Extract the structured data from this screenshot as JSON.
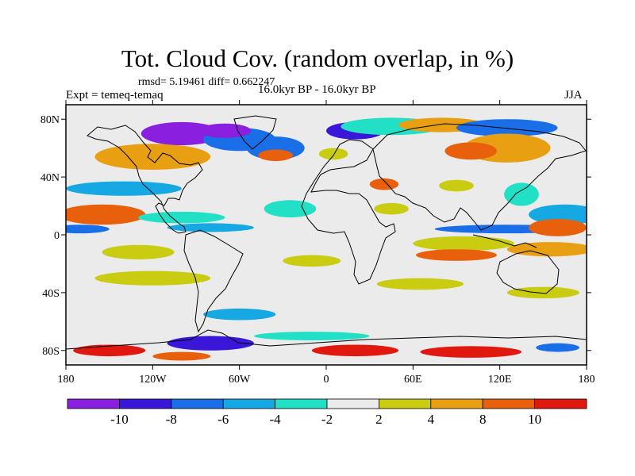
{
  "title": "Tot. Cloud Cov. (random overlap, in %)",
  "stats": "rmsd= 5.19461 diff= 0.662247",
  "experiment": "Expt = temeq-temaq",
  "period": "16.0kyr BP - 16.0kyr BP",
  "season": "JJA",
  "chart_data": {
    "type": "heatmap",
    "projection": "cylindrical-equidistant",
    "title": "Tot. Cloud Cov. (random overlap, in %)",
    "variable": "total cloud cover difference (%)",
    "xlim": [
      -180,
      180
    ],
    "ylim": [
      -90,
      90
    ],
    "x_ticks": [
      {
        "value": -180,
        "label": "180"
      },
      {
        "value": -120,
        "label": "120W"
      },
      {
        "value": -60,
        "label": "60W"
      },
      {
        "value": 0,
        "label": "0"
      },
      {
        "value": 60,
        "label": "60E"
      },
      {
        "value": 120,
        "label": "120E"
      },
      {
        "value": 180,
        "label": "180"
      }
    ],
    "y_ticks": [
      {
        "value": 80,
        "label": "80N"
      },
      {
        "value": 40,
        "label": "40N"
      },
      {
        "value": 0,
        "label": "0"
      },
      {
        "value": -40,
        "label": "40S"
      },
      {
        "value": -80,
        "label": "80S"
      }
    ],
    "colorbar": {
      "levels": [
        -12,
        -10,
        -8,
        -6,
        -4,
        -2,
        2,
        4,
        8,
        10
      ],
      "labels": [
        "-10",
        "-8",
        "-6",
        "-4",
        "-2",
        "2",
        "4",
        "8",
        "10"
      ],
      "colors": [
        "#8a1fe0",
        "#3a16d8",
        "#1a6ee8",
        "#15a8e3",
        "#22e0c6",
        "#ebebeb",
        "#c9cc10",
        "#e8a012",
        "#e8600c",
        "#e01810"
      ]
    },
    "fill_colors": {
      "neutral": "#ebebeb",
      "c-10": "#8a1fe0",
      "c-8": "#3a16d8",
      "c-6": "#1a6ee8",
      "c-4": "#15a8e3",
      "c-2": "#22e0c6",
      "c2": "#c9cc10",
      "c4": "#e8a012",
      "c8": "#e8600c",
      "c10": "#e01810"
    },
    "anomalies": [
      {
        "lon": -120,
        "lat": 54,
        "rlon": 40,
        "rlat": 9,
        "level": "c4"
      },
      {
        "lon": -100,
        "lat": 70,
        "rlon": 28,
        "rlat": 8,
        "level": "c-10"
      },
      {
        "lon": -60,
        "lat": 66,
        "rlon": 25,
        "rlat": 8,
        "level": "c-6"
      },
      {
        "lon": -70,
        "lat": 72,
        "rlon": 18,
        "rlat": 5,
        "level": "c-10"
      },
      {
        "lon": -140,
        "lat": 32,
        "rlon": 40,
        "rlat": 5,
        "level": "c-4"
      },
      {
        "lon": -155,
        "lat": 14,
        "rlon": 30,
        "rlat": 7,
        "level": "c8"
      },
      {
        "lon": -100,
        "lat": 12,
        "rlon": 30,
        "rlat": 4,
        "level": "c-2"
      },
      {
        "lon": -170,
        "lat": 4,
        "rlon": 20,
        "rlat": 3,
        "level": "c-6"
      },
      {
        "lon": -80,
        "lat": 5,
        "rlon": 30,
        "rlat": 3,
        "level": "c-4"
      },
      {
        "lon": -130,
        "lat": -12,
        "rlon": 25,
        "rlat": 5,
        "level": "c2"
      },
      {
        "lon": -120,
        "lat": -30,
        "rlon": 40,
        "rlat": 5,
        "level": "c2"
      },
      {
        "lon": -25,
        "lat": 18,
        "rlon": 18,
        "rlat": 6,
        "level": "c-2"
      },
      {
        "lon": -10,
        "lat": -18,
        "rlon": 20,
        "rlat": 4,
        "level": "c2"
      },
      {
        "lon": -35,
        "lat": 60,
        "rlon": 20,
        "rlat": 8,
        "level": "c-6"
      },
      {
        "lon": -35,
        "lat": 55,
        "rlon": 12,
        "rlat": 4,
        "level": "c8"
      },
      {
        "lon": 20,
        "lat": 72,
        "rlon": 20,
        "rlat": 6,
        "level": "c-8"
      },
      {
        "lon": 45,
        "lat": 75,
        "rlon": 35,
        "rlat": 6,
        "level": "c-2"
      },
      {
        "lon": 80,
        "lat": 76,
        "rlon": 30,
        "rlat": 5,
        "level": "c4"
      },
      {
        "lon": 125,
        "lat": 74,
        "rlon": 35,
        "rlat": 6,
        "level": "c-6"
      },
      {
        "lon": 125,
        "lat": 60,
        "rlon": 30,
        "rlat": 10,
        "level": "c4"
      },
      {
        "lon": 100,
        "lat": 58,
        "rlon": 18,
        "rlat": 6,
        "level": "c8"
      },
      {
        "lon": 5,
        "lat": 56,
        "rlon": 10,
        "rlat": 4,
        "level": "c2"
      },
      {
        "lon": 40,
        "lat": 35,
        "rlon": 10,
        "rlat": 4,
        "level": "c8"
      },
      {
        "lon": 45,
        "lat": 18,
        "rlon": 12,
        "rlat": 4,
        "level": "c2"
      },
      {
        "lon": 90,
        "lat": 34,
        "rlon": 12,
        "rlat": 4,
        "level": "c2"
      },
      {
        "lon": 135,
        "lat": 28,
        "rlon": 12,
        "rlat": 8,
        "level": "c-2"
      },
      {
        "lon": 165,
        "lat": 14,
        "rlon": 25,
        "rlat": 7,
        "level": "c-4"
      },
      {
        "lon": 125,
        "lat": 4,
        "rlon": 50,
        "rlat": 3,
        "level": "c-6"
      },
      {
        "lon": 95,
        "lat": -6,
        "rlon": 35,
        "rlat": 5,
        "level": "c2"
      },
      {
        "lon": 155,
        "lat": -10,
        "rlon": 30,
        "rlat": 5,
        "level": "c4"
      },
      {
        "lon": 90,
        "lat": -14,
        "rlon": 28,
        "rlat": 4,
        "level": "c8"
      },
      {
        "lon": 160,
        "lat": 5,
        "rlon": 20,
        "rlat": 6,
        "level": "c8"
      },
      {
        "lon": 65,
        "lat": -34,
        "rlon": 30,
        "rlat": 4,
        "level": "c2"
      },
      {
        "lon": 150,
        "lat": -40,
        "rlon": 25,
        "rlat": 4,
        "level": "c2"
      },
      {
        "lon": -60,
        "lat": -55,
        "rlon": 25,
        "rlat": 4,
        "level": "c-4"
      },
      {
        "lon": -80,
        "lat": -75,
        "rlon": 30,
        "rlat": 5,
        "level": "c-8"
      },
      {
        "lon": -10,
        "lat": -70,
        "rlon": 40,
        "rlat": 3,
        "level": "c-2"
      },
      {
        "lon": -150,
        "lat": -80,
        "rlon": 25,
        "rlat": 4,
        "level": "c10"
      },
      {
        "lon": -100,
        "lat": -84,
        "rlon": 20,
        "rlat": 3,
        "level": "c8"
      },
      {
        "lon": 20,
        "lat": -80,
        "rlon": 30,
        "rlat": 4,
        "level": "c10"
      },
      {
        "lon": 100,
        "lat": -81,
        "rlon": 35,
        "rlat": 4,
        "level": "c10"
      },
      {
        "lon": 160,
        "lat": -78,
        "rlon": 15,
        "rlat": 3,
        "level": "c-6"
      }
    ]
  }
}
